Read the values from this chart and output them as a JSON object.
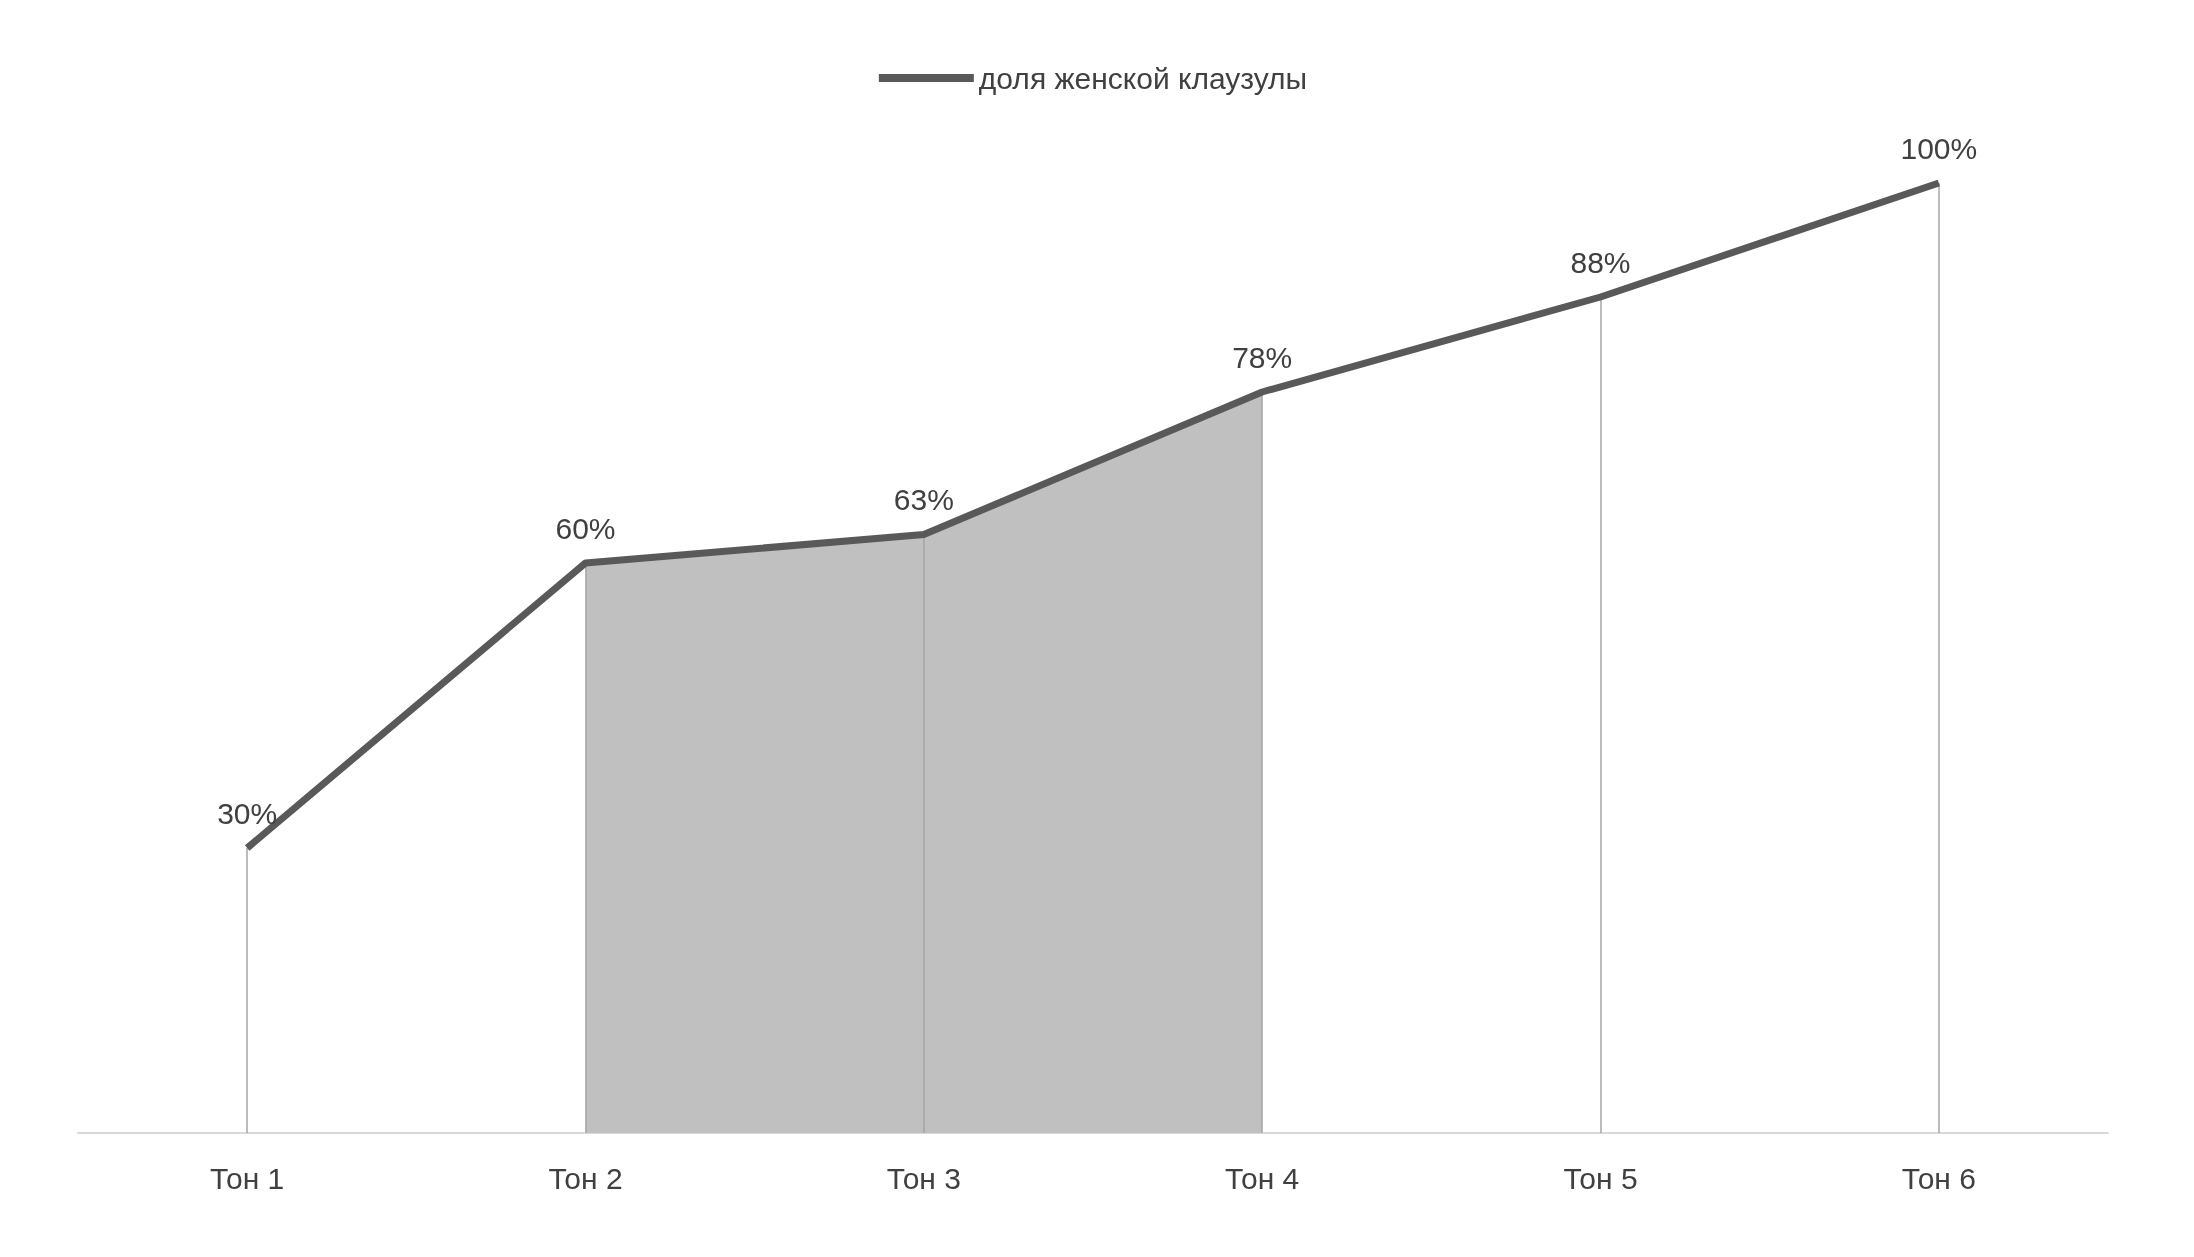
{
  "chart_data": {
    "type": "line",
    "categories": [
      "Тон 1",
      "Тон 2",
      "Тон 3",
      "Тон 4",
      "Тон 5",
      "Тон 6"
    ],
    "series": [
      {
        "name": "доля женской клаузулы",
        "color": "#595959",
        "values": [
          30,
          60,
          63,
          78,
          88,
          100
        ],
        "value_labels": [
          "30%",
          "60%",
          "63%",
          "78%",
          "88%",
          "100%"
        ]
      }
    ],
    "bands": [
      {
        "axis": "x",
        "from": "Тон 2",
        "to": "Тон 4",
        "color": "#c0c0c0"
      }
    ],
    "legend": "top",
    "grid": "x",
    "marker": "none"
  }
}
